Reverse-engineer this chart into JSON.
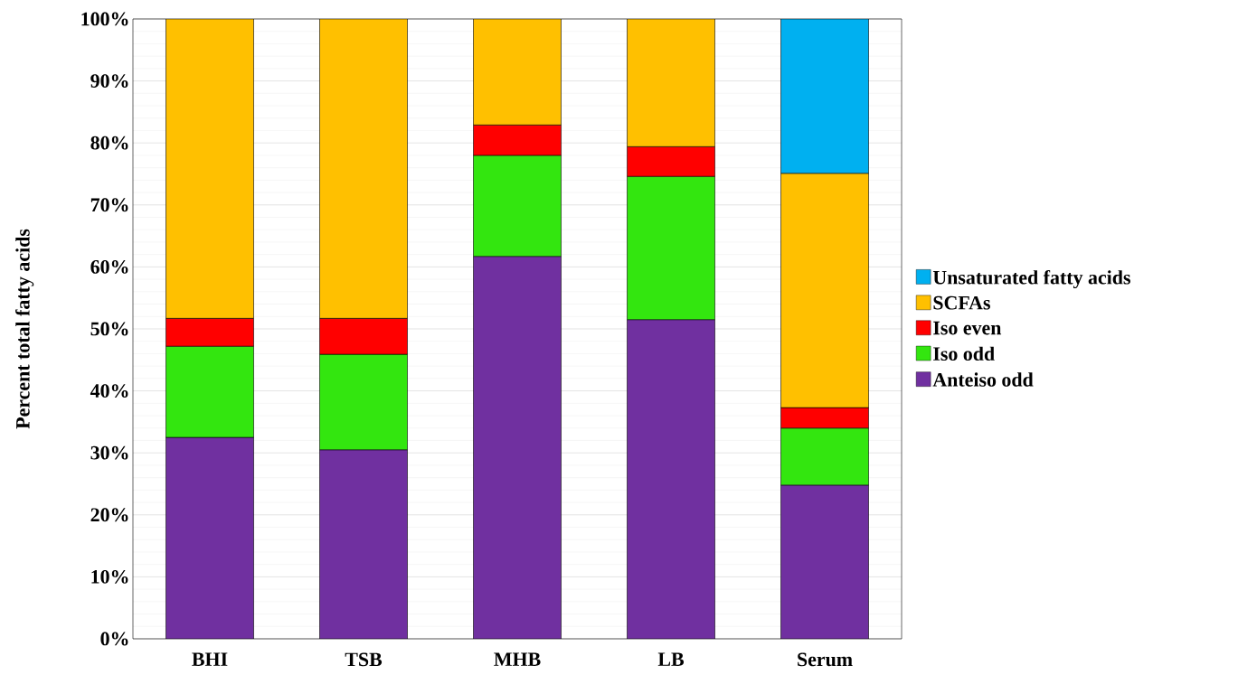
{
  "chart_data": {
    "type": "bar",
    "stacked": true,
    "ylabel": "Percent total fatty acids",
    "categories": [
      "BHI",
      "TSB",
      "MHB",
      "LB",
      "Serum"
    ],
    "series": [
      {
        "name": "Anteiso odd",
        "color": "#7030a0",
        "values": [
          32.5,
          30.5,
          61.7,
          51.5,
          24.8
        ]
      },
      {
        "name": "Iso odd",
        "color": "#33e60f",
        "values": [
          14.7,
          15.4,
          16.3,
          23.1,
          9.2
        ]
      },
      {
        "name": "Iso even",
        "color": "#ff0000",
        "values": [
          4.5,
          5.8,
          4.9,
          4.8,
          3.3
        ]
      },
      {
        "name": "SCFAs",
        "color": "#ffc000",
        "values": [
          48.3,
          48.3,
          17.1,
          20.6,
          37.8
        ]
      },
      {
        "name": "Unsaturated fatty acids",
        "color": "#00b0f0",
        "values": [
          null,
          null,
          null,
          null,
          24.9
        ]
      }
    ],
    "ylim": [
      0,
      100
    ],
    "yticks": [
      {
        "value": 0,
        "label": "0%"
      },
      {
        "value": 10,
        "label": "10%"
      },
      {
        "value": 20,
        "label": "20%"
      },
      {
        "value": 30,
        "label": "30%"
      },
      {
        "value": 40,
        "label": "40%"
      },
      {
        "value": 50,
        "label": "50%"
      },
      {
        "value": 60,
        "label": "60%"
      },
      {
        "value": 70,
        "label": "70%"
      },
      {
        "value": 80,
        "label": "80%"
      },
      {
        "value": 90,
        "label": "90%"
      },
      {
        "value": 100,
        "label": "100%"
      }
    ],
    "grid": "y",
    "legend": "right"
  }
}
